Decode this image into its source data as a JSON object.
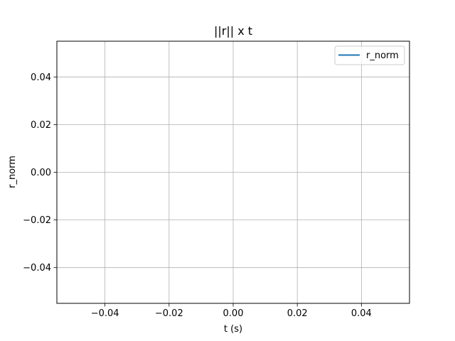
{
  "chart_data": {
    "type": "line",
    "title": "||r|| x t",
    "xlabel": "t (s)",
    "ylabel": "r_norm",
    "xlim": [
      -0.055,
      0.055
    ],
    "ylim": [
      -0.055,
      0.055
    ],
    "xticks": [
      -0.04,
      -0.02,
      0.0,
      0.02,
      0.04
    ],
    "yticks": [
      -0.04,
      -0.02,
      0.0,
      0.02,
      0.04
    ],
    "xtick_labels": [
      "−0.04",
      "−0.02",
      "0.00",
      "0.02",
      "0.04"
    ],
    "ytick_labels": [
      "−0.04",
      "−0.02",
      "0.00",
      "0.02",
      "0.04"
    ],
    "grid": true,
    "legend_position": "top-right",
    "series": [
      {
        "name": "r_norm",
        "color": "#1f77b4",
        "x": [],
        "y": []
      }
    ]
  }
}
